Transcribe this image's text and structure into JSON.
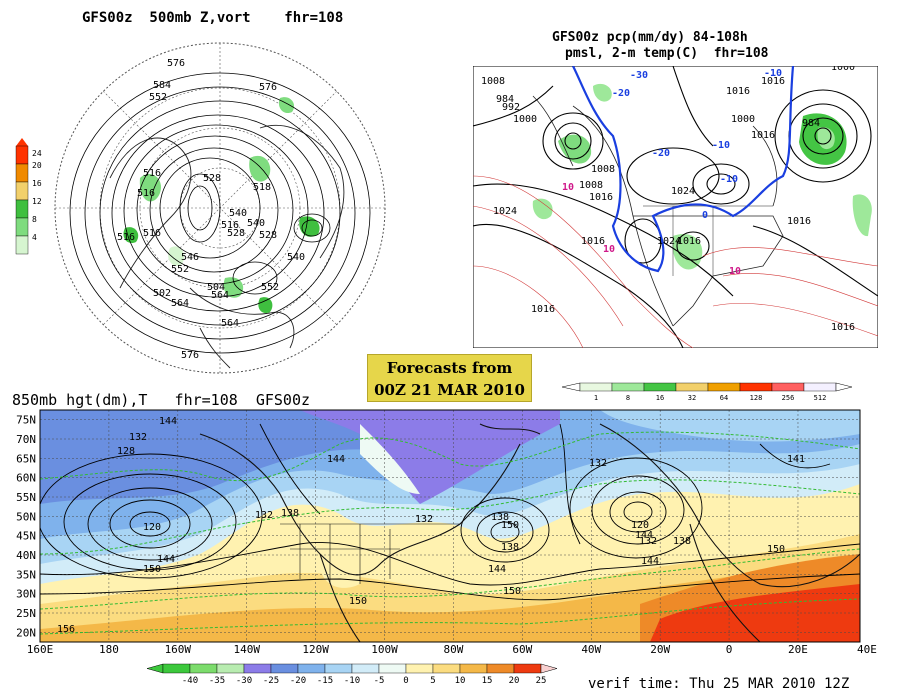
{
  "panel500": {
    "title": "GFS00z  500mb Z,vort    fhr=108",
    "colorbar_ticks": [
      "24",
      "20",
      "16",
      "12",
      "8",
      "4"
    ],
    "colorbar_colors": [
      "#ff3300",
      "#f08a00",
      "#f2d06b",
      "#3fbf3f",
      "#7fdc7f",
      "#d6f5d0"
    ],
    "contour_labels": [
      "576",
      "576",
      "584",
      "552",
      "516",
      "516",
      "528",
      "540",
      "516",
      "528",
      "540",
      "516",
      "546",
      "552",
      "528",
      "540",
      "504",
      "552",
      "564",
      "576",
      "518",
      "516",
      "502",
      "564",
      "564"
    ]
  },
  "panelPcp": {
    "title_line1": "GFS00z pcp(mm/dy) 84-108h",
    "title_line2": "pmsl, 2-m temp(C)  fhr=108",
    "isobar_labels": [
      "1008",
      "1016",
      "984",
      "992",
      "1000",
      "1008",
      "1008",
      "1016",
      "1024",
      "1024",
      "1024",
      "1016",
      "1016",
      "1016",
      "1016",
      "1000",
      "1016",
      "984",
      "1016",
      "1016",
      "1000"
    ],
    "temp_labels": [
      "10",
      "-20",
      "-30",
      "-20",
      "-10",
      "-10",
      "0",
      "10",
      "10",
      "-10"
    ],
    "colorbar_ticks": [
      "1",
      "8",
      "16",
      "32",
      "64",
      "128",
      "256",
      "512"
    ],
    "colorbar_colors": [
      "#e8f8e0",
      "#9ee89a",
      "#44c544",
      "#f2d06b",
      "#f0a000",
      "#ff3300",
      "#ff6060",
      "#f4f0ff"
    ]
  },
  "banner": {
    "line1": "Forecasts from",
    "line2": "00Z 21 MAR 2010",
    "bg": "#e6d64a"
  },
  "panel850": {
    "title": "850mb hgt(dm),T   fhr=108  GFS00z",
    "lat_labels": [
      "75N",
      "70N",
      "65N",
      "60N",
      "55N",
      "50N",
      "45N",
      "40N",
      "35N",
      "30N",
      "25N",
      "20N"
    ],
    "lon_labels": [
      "160E",
      "180",
      "160W",
      "140W",
      "120W",
      "100W",
      "80W",
      "60W",
      "40W",
      "20W",
      "0",
      "20E",
      "40E"
    ],
    "height_labels": [
      "144",
      "132",
      "128",
      "144",
      "138",
      "120",
      "144",
      "150",
      "132",
      "138",
      "150",
      "132",
      "138",
      "120",
      "132",
      "144",
      "132",
      "138",
      "150",
      "144",
      "150",
      "150",
      "156",
      "144",
      "141"
    ],
    "colorbar_ticks": [
      "-40",
      "-35",
      "-30",
      "-25",
      "-20",
      "-15",
      "-10",
      "-5",
      "0",
      "5",
      "10",
      "15",
      "20",
      "25"
    ],
    "colorbar_colors": [
      "#3cc83c",
      "#7cdc6c",
      "#b8ecb0",
      "#8c7ce8",
      "#6a8fe0",
      "#7fb2ec",
      "#a8d4f4",
      "#d2ecf8",
      "#eefaf4",
      "#fff2b0",
      "#fbdc80",
      "#f4b848",
      "#ee8a28",
      "#ee3a10",
      "#f8d0d0"
    ],
    "verif_time": "verif time: Thu 25 MAR 2010 12Z"
  }
}
